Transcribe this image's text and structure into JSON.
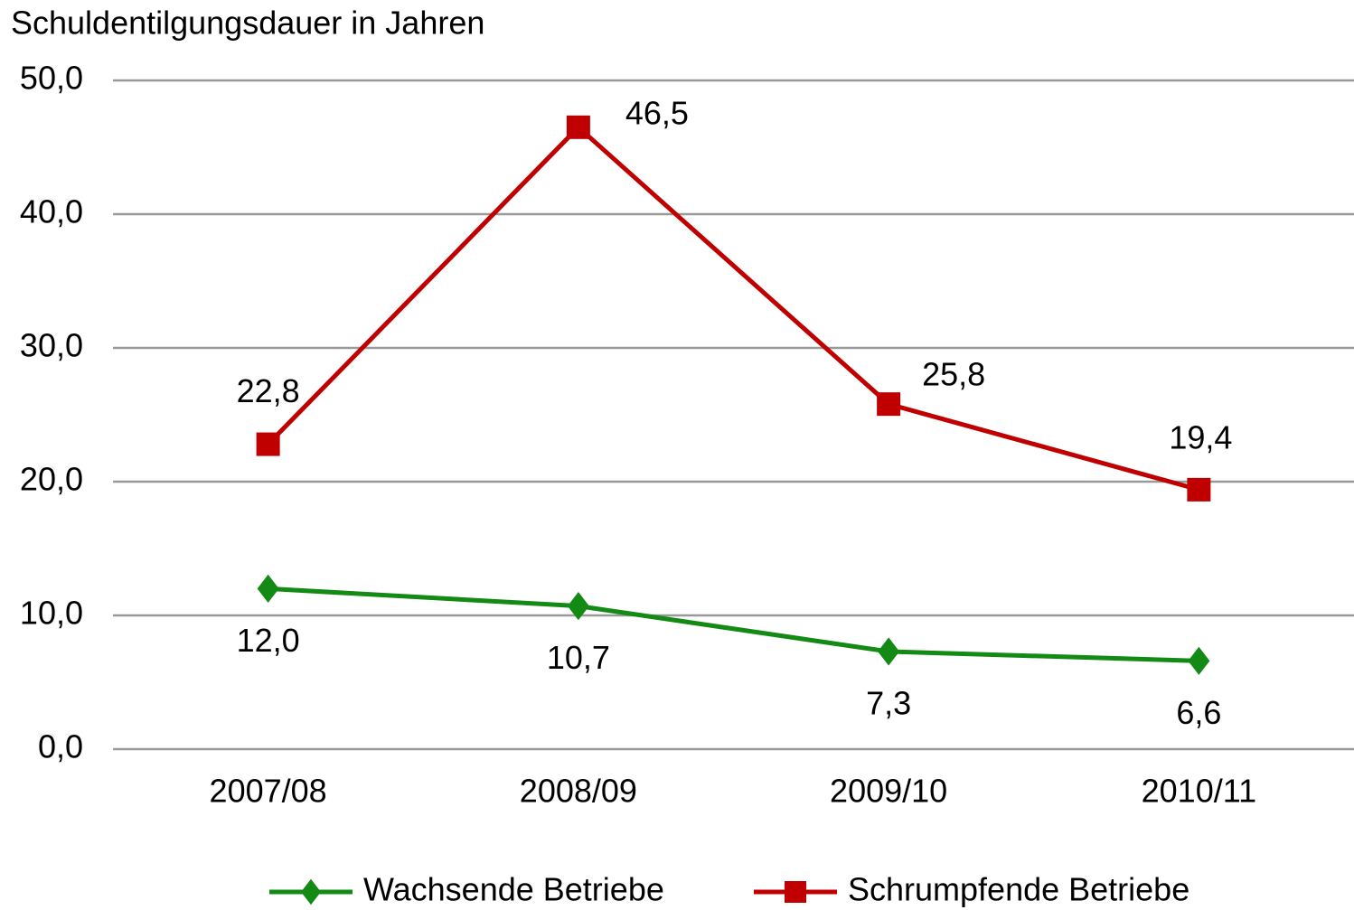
{
  "chart_data": {
    "type": "line",
    "y_axis_label": "Schuldentilgungsdauer in Jahren",
    "categories": [
      "2007/08",
      "2008/09",
      "2009/10",
      "2010/11"
    ],
    "series": [
      {
        "name": "Wachsende Betriebe",
        "color": "#138a13",
        "marker": "diamond",
        "values": [
          12.0,
          10.7,
          7.3,
          6.6
        ],
        "value_labels": [
          "12,0",
          "10,7",
          "7,3",
          "6,6"
        ]
      },
      {
        "name": "Schrumpfende Betriebe",
        "color": "#c00000",
        "marker": "square",
        "values": [
          22.8,
          46.5,
          25.8,
          19.4
        ],
        "value_labels": [
          "22,8",
          "46,5",
          "25,8",
          "19,4"
        ]
      }
    ],
    "ylim": [
      0,
      50
    ],
    "yticks": [
      {
        "value": 0,
        "label": "0,0"
      },
      {
        "value": 10,
        "label": "10,0"
      },
      {
        "value": 20,
        "label": "20,0"
      },
      {
        "value": 30,
        "label": "30,0"
      },
      {
        "value": 40,
        "label": "40,0"
      },
      {
        "value": 50,
        "label": "50,0"
      }
    ],
    "grid": true,
    "legend": "bottom"
  }
}
